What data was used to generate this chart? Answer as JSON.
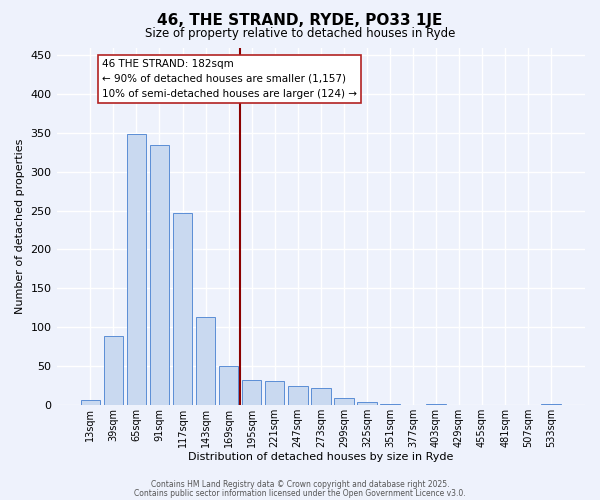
{
  "title": "46, THE STRAND, RYDE, PO33 1JE",
  "subtitle": "Size of property relative to detached houses in Ryde",
  "xlabel": "Distribution of detached houses by size in Ryde",
  "ylabel": "Number of detached properties",
  "bar_labels": [
    "13sqm",
    "39sqm",
    "65sqm",
    "91sqm",
    "117sqm",
    "143sqm",
    "169sqm",
    "195sqm",
    "221sqm",
    "247sqm",
    "273sqm",
    "299sqm",
    "325sqm",
    "351sqm",
    "377sqm",
    "403sqm",
    "429sqm",
    "455sqm",
    "481sqm",
    "507sqm",
    "533sqm"
  ],
  "bar_values": [
    6,
    89,
    349,
    335,
    247,
    113,
    50,
    32,
    30,
    24,
    21,
    9,
    4,
    1,
    0,
    1,
    0,
    0,
    0,
    0,
    1
  ],
  "bar_color": "#c9d9f0",
  "bar_edge_color": "#5b8ed6",
  "vline_color": "#8b0000",
  "annotation_title": "46 THE STRAND: 182sqm",
  "annotation_line1": "← 90% of detached houses are smaller (1,157)",
  "annotation_line2": "10% of semi-detached houses are larger (124) →",
  "footer_line1": "Contains HM Land Registry data © Crown copyright and database right 2025.",
  "footer_line2": "Contains public sector information licensed under the Open Government Licence v3.0.",
  "ylim": [
    0,
    460
  ],
  "background_color": "#eef2fc",
  "grid_color": "#ffffff"
}
